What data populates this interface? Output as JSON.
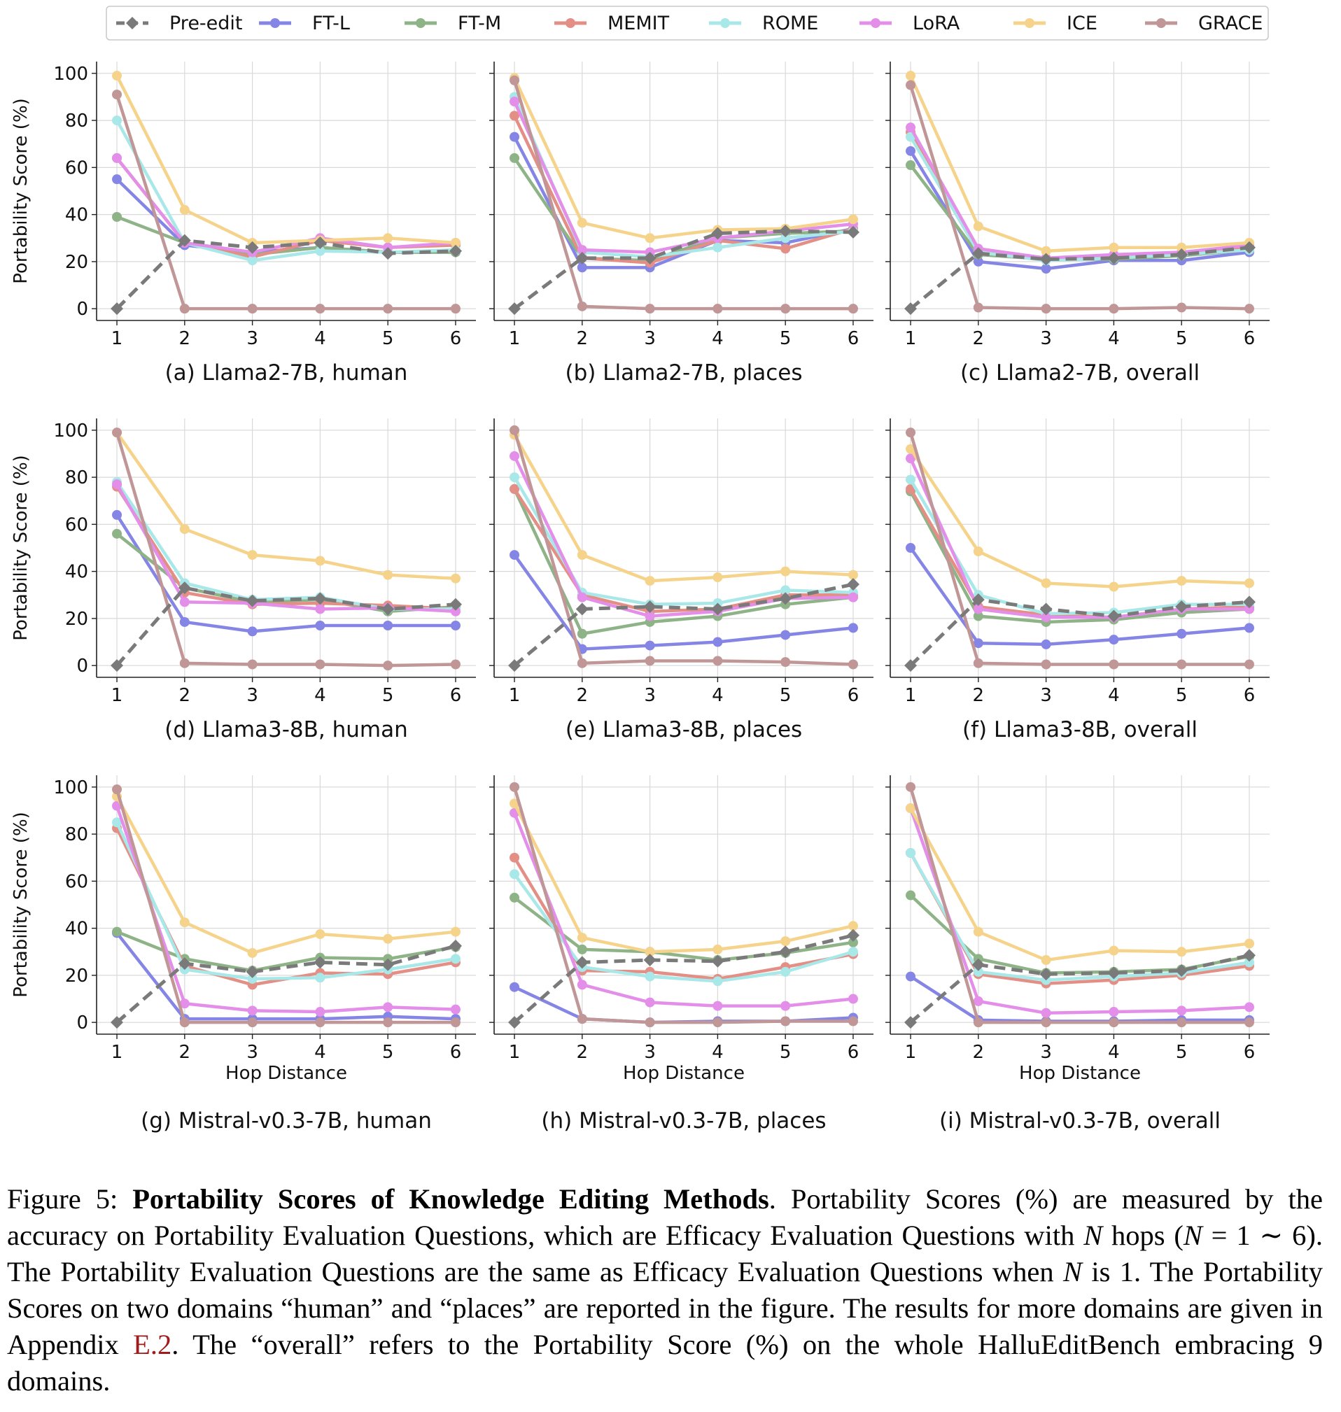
{
  "chart_data": {
    "type": "line",
    "ylabel": "Portability Score (%)",
    "xlabel": "Hop Distance",
    "x": [
      1,
      2,
      3,
      4,
      5,
      6
    ],
    "ylim": [
      -5,
      105
    ],
    "yticks": [
      0,
      20,
      40,
      60,
      80,
      100
    ],
    "grid": true,
    "legend": "top-center",
    "series_styles": [
      {
        "name": "Pre-edit",
        "color": "#7a7a7a",
        "dash": true,
        "marker": "diamond"
      },
      {
        "name": "FT-L",
        "color": "#8585e6",
        "dash": false,
        "marker": "circle"
      },
      {
        "name": "FT-M",
        "color": "#8db387",
        "dash": false,
        "marker": "circle"
      },
      {
        "name": "MEMIT",
        "color": "#e38f86",
        "dash": false,
        "marker": "circle"
      },
      {
        "name": "ROME",
        "color": "#a9e8e8",
        "dash": false,
        "marker": "circle"
      },
      {
        "name": "LoRA",
        "color": "#e38ee8",
        "dash": false,
        "marker": "circle"
      },
      {
        "name": "ICE",
        "color": "#f6d38a",
        "dash": false,
        "marker": "circle"
      },
      {
        "name": "GRACE",
        "color": "#c09696",
        "dash": false,
        "marker": "circle"
      }
    ],
    "panels": [
      {
        "caption": "(a) Llama2-7B, human",
        "series": [
          {
            "name": "Pre-edit",
            "values": [
              0,
              29,
              26,
              28,
              23.5,
              24.5
            ]
          },
          {
            "name": "FT-L",
            "values": [
              55,
              27,
              24,
              26,
              24,
              24
            ]
          },
          {
            "name": "FT-M",
            "values": [
              39,
              28,
              23,
              26,
              24,
              24
            ]
          },
          {
            "name": "MEMIT",
            "values": [
              64,
              28,
              22,
              29,
              26,
              27
            ]
          },
          {
            "name": "ROME",
            "values": [
              80,
              28,
              20.5,
              24.5,
              24,
              25
            ]
          },
          {
            "name": "LoRA",
            "values": [
              64,
              28,
              24,
              30,
              26,
              28
            ]
          },
          {
            "name": "ICE",
            "values": [
              99,
              42,
              28,
              29,
              30,
              28
            ]
          },
          {
            "name": "GRACE",
            "values": [
              91,
              0,
              0,
              0,
              0,
              0
            ]
          }
        ]
      },
      {
        "caption": "(b) Llama2-7B, places",
        "series": [
          {
            "name": "Pre-edit",
            "values": [
              0,
              21.5,
              21.5,
              32,
              33,
              32.5
            ]
          },
          {
            "name": "FT-L",
            "values": [
              73,
              17.5,
              17.5,
              29,
              28,
              34
            ]
          },
          {
            "name": "FT-M",
            "values": [
              64,
              21.5,
              20.5,
              30,
              32,
              33
            ]
          },
          {
            "name": "MEMIT",
            "values": [
              82,
              21.5,
              19.5,
              29,
              25.5,
              34
            ]
          },
          {
            "name": "ROME",
            "values": [
              90,
              24,
              22,
              26,
              30,
              33
            ]
          },
          {
            "name": "LoRA",
            "values": [
              88,
              25,
              24,
              30,
              33,
              36
            ]
          },
          {
            "name": "ICE",
            "values": [
              98,
              36.5,
              30,
              33.5,
              34,
              38
            ]
          },
          {
            "name": "GRACE",
            "values": [
              97,
              1,
              0,
              0,
              0,
              0
            ]
          }
        ]
      },
      {
        "caption": "(c) Llama2-7B, overall",
        "series": [
          {
            "name": "Pre-edit",
            "values": [
              0,
              23.5,
              21,
              21.5,
              23,
              26
            ]
          },
          {
            "name": "FT-L",
            "values": [
              67,
              20,
              17,
              20.5,
              20.5,
              24
            ]
          },
          {
            "name": "FT-M",
            "values": [
              61,
              23,
              21,
              21,
              22.5,
              25
            ]
          },
          {
            "name": "MEMIT",
            "values": [
              75,
              24,
              21,
              22,
              23,
              26
            ]
          },
          {
            "name": "ROME",
            "values": [
              73,
              24,
              20.5,
              21.5,
              23,
              25
            ]
          },
          {
            "name": "LoRA",
            "values": [
              77,
              25.5,
              21.5,
              23,
              24,
              27
            ]
          },
          {
            "name": "ICE",
            "values": [
              99,
              35,
              24.5,
              26,
              26,
              28
            ]
          },
          {
            "name": "GRACE",
            "values": [
              95,
              0.5,
              0,
              0,
              0.5,
              0
            ]
          }
        ]
      },
      {
        "caption": "(d) Llama3-8B, human",
        "series": [
          {
            "name": "Pre-edit",
            "values": [
              0,
              33,
              27.5,
              28.5,
              24,
              26
            ]
          },
          {
            "name": "FT-L",
            "values": [
              64,
              18.5,
              14.5,
              17,
              17,
              17
            ]
          },
          {
            "name": "FT-M",
            "values": [
              56,
              33,
              27,
              28,
              23,
              25
            ]
          },
          {
            "name": "MEMIT",
            "values": [
              76,
              31,
              26,
              26.5,
              25.5,
              24
            ]
          },
          {
            "name": "ROME",
            "values": [
              78,
              35,
              28,
              29,
              24,
              24
            ]
          },
          {
            "name": "LoRA",
            "values": [
              77,
              27,
              26.5,
              24,
              24.5,
              23
            ]
          },
          {
            "name": "ICE",
            "values": [
              99,
              58,
              47,
              44.5,
              38.5,
              37
            ]
          },
          {
            "name": "GRACE",
            "values": [
              99,
              1,
              0.5,
              0.5,
              0,
              0.5
            ]
          }
        ]
      },
      {
        "caption": "(e) Llama3-8B, places",
        "series": [
          {
            "name": "Pre-edit",
            "values": [
              0,
              24,
              25,
              24,
              28.5,
              34.5
            ]
          },
          {
            "name": "FT-L",
            "values": [
              47,
              7,
              8.5,
              10,
              13,
              16
            ]
          },
          {
            "name": "FT-M",
            "values": [
              75,
              13.5,
              18.5,
              21,
              26,
              29
            ]
          },
          {
            "name": "MEMIT",
            "values": [
              75,
              30,
              23,
              24,
              30,
              30
            ]
          },
          {
            "name": "ROME",
            "values": [
              80,
              31,
              26,
              26.5,
              32,
              31
            ]
          },
          {
            "name": "LoRA",
            "values": [
              89,
              29,
              21,
              23,
              28.5,
              29
            ]
          },
          {
            "name": "ICE",
            "values": [
              98,
              47,
              36,
              37.5,
              40,
              38.5
            ]
          },
          {
            "name": "GRACE",
            "values": [
              100,
              1,
              2,
              2,
              1.5,
              0.5
            ]
          }
        ]
      },
      {
        "caption": "(f) Llama3-8B, overall",
        "series": [
          {
            "name": "Pre-edit",
            "values": [
              0,
              28,
              24,
              21,
              25,
              27
            ]
          },
          {
            "name": "FT-L",
            "values": [
              50,
              9.5,
              9,
              11,
              13.5,
              16
            ]
          },
          {
            "name": "FT-M",
            "values": [
              74,
              21,
              18.5,
              19.5,
              22.5,
              24
            ]
          },
          {
            "name": "MEMIT",
            "values": [
              75,
              25,
              21.5,
              20.5,
              24,
              25
            ]
          },
          {
            "name": "ROME",
            "values": [
              79,
              30,
              22,
              22.5,
              26,
              26
            ]
          },
          {
            "name": "LoRA",
            "values": [
              88,
              24,
              20.5,
              20.5,
              24,
              24
            ]
          },
          {
            "name": "ICE",
            "values": [
              92,
              48.5,
              35,
              33.5,
              36,
              35
            ]
          },
          {
            "name": "GRACE",
            "values": [
              99,
              1,
              0.5,
              0.5,
              0.5,
              0.5
            ]
          }
        ]
      },
      {
        "caption": "(g) Mistral-v0.3-7B, human",
        "series": [
          {
            "name": "Pre-edit",
            "values": [
              0,
              25,
              21.5,
              25.5,
              24.5,
              32.5
            ]
          },
          {
            "name": "FT-L",
            "values": [
              38,
              1.5,
              1.5,
              1.5,
              2.5,
              1.5
            ]
          },
          {
            "name": "FT-M",
            "values": [
              38.5,
              27,
              22,
              27.5,
              27,
              32
            ]
          },
          {
            "name": "MEMIT",
            "values": [
              82.5,
              24,
              16,
              21,
              20.5,
              25.5
            ]
          },
          {
            "name": "ROME",
            "values": [
              85,
              22.5,
              18.5,
              19,
              22.5,
              27
            ]
          },
          {
            "name": "LoRA",
            "values": [
              92,
              8,
              5,
              4.5,
              6.5,
              5.5
            ]
          },
          {
            "name": "ICE",
            "values": [
              96,
              42.5,
              29.5,
              37.5,
              35.5,
              38.5
            ]
          },
          {
            "name": "GRACE",
            "values": [
              99,
              0,
              0,
              0,
              0,
              0
            ]
          }
        ]
      },
      {
        "caption": "(h) Mistral-v0.3-7B, places",
        "series": [
          {
            "name": "Pre-edit",
            "values": [
              0,
              25.5,
              26.5,
              26,
              30,
              37
            ]
          },
          {
            "name": "FT-L",
            "values": [
              15,
              1.5,
              0,
              0.5,
              0.5,
              2
            ]
          },
          {
            "name": "FT-M",
            "values": [
              53,
              31,
              30,
              26.5,
              29.5,
              34
            ]
          },
          {
            "name": "MEMIT",
            "values": [
              70,
              22,
              21.5,
              18.5,
              23.5,
              29
            ]
          },
          {
            "name": "ROME",
            "values": [
              63,
              23.5,
              19.5,
              17.5,
              21.5,
              30
            ]
          },
          {
            "name": "LoRA",
            "values": [
              89,
              16,
              8.5,
              7,
              7,
              10
            ]
          },
          {
            "name": "ICE",
            "values": [
              93,
              36,
              30,
              31,
              34.5,
              41
            ]
          },
          {
            "name": "GRACE",
            "values": [
              100,
              1.5,
              0,
              0,
              0.5,
              0.5
            ]
          }
        ]
      },
      {
        "caption": "(i) Mistral-v0.3-7B, overall",
        "series": [
          {
            "name": "Pre-edit",
            "values": [
              0,
              24.5,
              20.5,
              21,
              22,
              28.5
            ]
          },
          {
            "name": "FT-L",
            "values": [
              19.5,
              1,
              0.5,
              0.5,
              1,
              1
            ]
          },
          {
            "name": "FT-M",
            "values": [
              54,
              27,
              21,
              21.5,
              22.5,
              28
            ]
          },
          {
            "name": "MEMIT",
            "values": [
              72,
              20.5,
              16.5,
              18,
              20,
              24
            ]
          },
          {
            "name": "ROME",
            "values": [
              72,
              21.5,
              18,
              19.5,
              21,
              25.5
            ]
          },
          {
            "name": "LoRA",
            "values": [
              91,
              9,
              4,
              4.5,
              5,
              6.5
            ]
          },
          {
            "name": "ICE",
            "values": [
              91,
              38.5,
              26.5,
              30.5,
              30,
              33.5
            ]
          },
          {
            "name": "GRACE",
            "values": [
              100,
              0,
              0,
              0,
              0,
              0
            ]
          }
        ]
      }
    ]
  },
  "caption": {
    "label": "Figure 5: ",
    "bold": "Portability Scores of Knowledge Editing Methods",
    "text_a": ". Portability Scores (%) are measured by the accuracy on Portability Evaluation Questions, which are Efficacy Evaluation Questions with ",
    "n1": "N",
    "text_b": " hops (",
    "n2": "N",
    "text_c": " = 1 ∼ 6). The Portability Evaluation Questions are the same as Efficacy Evaluation Questions when ",
    "n3": "N",
    "text_d": " is 1. The Portability Scores on two domains “human” and “places” are reported in the figure. The results for more domains are given in Appendix ",
    "link": "E.2",
    "text_e": ". The “overall” refers to the Portability Score (%) on the whole HalluEditBench embracing 9 domains."
  }
}
